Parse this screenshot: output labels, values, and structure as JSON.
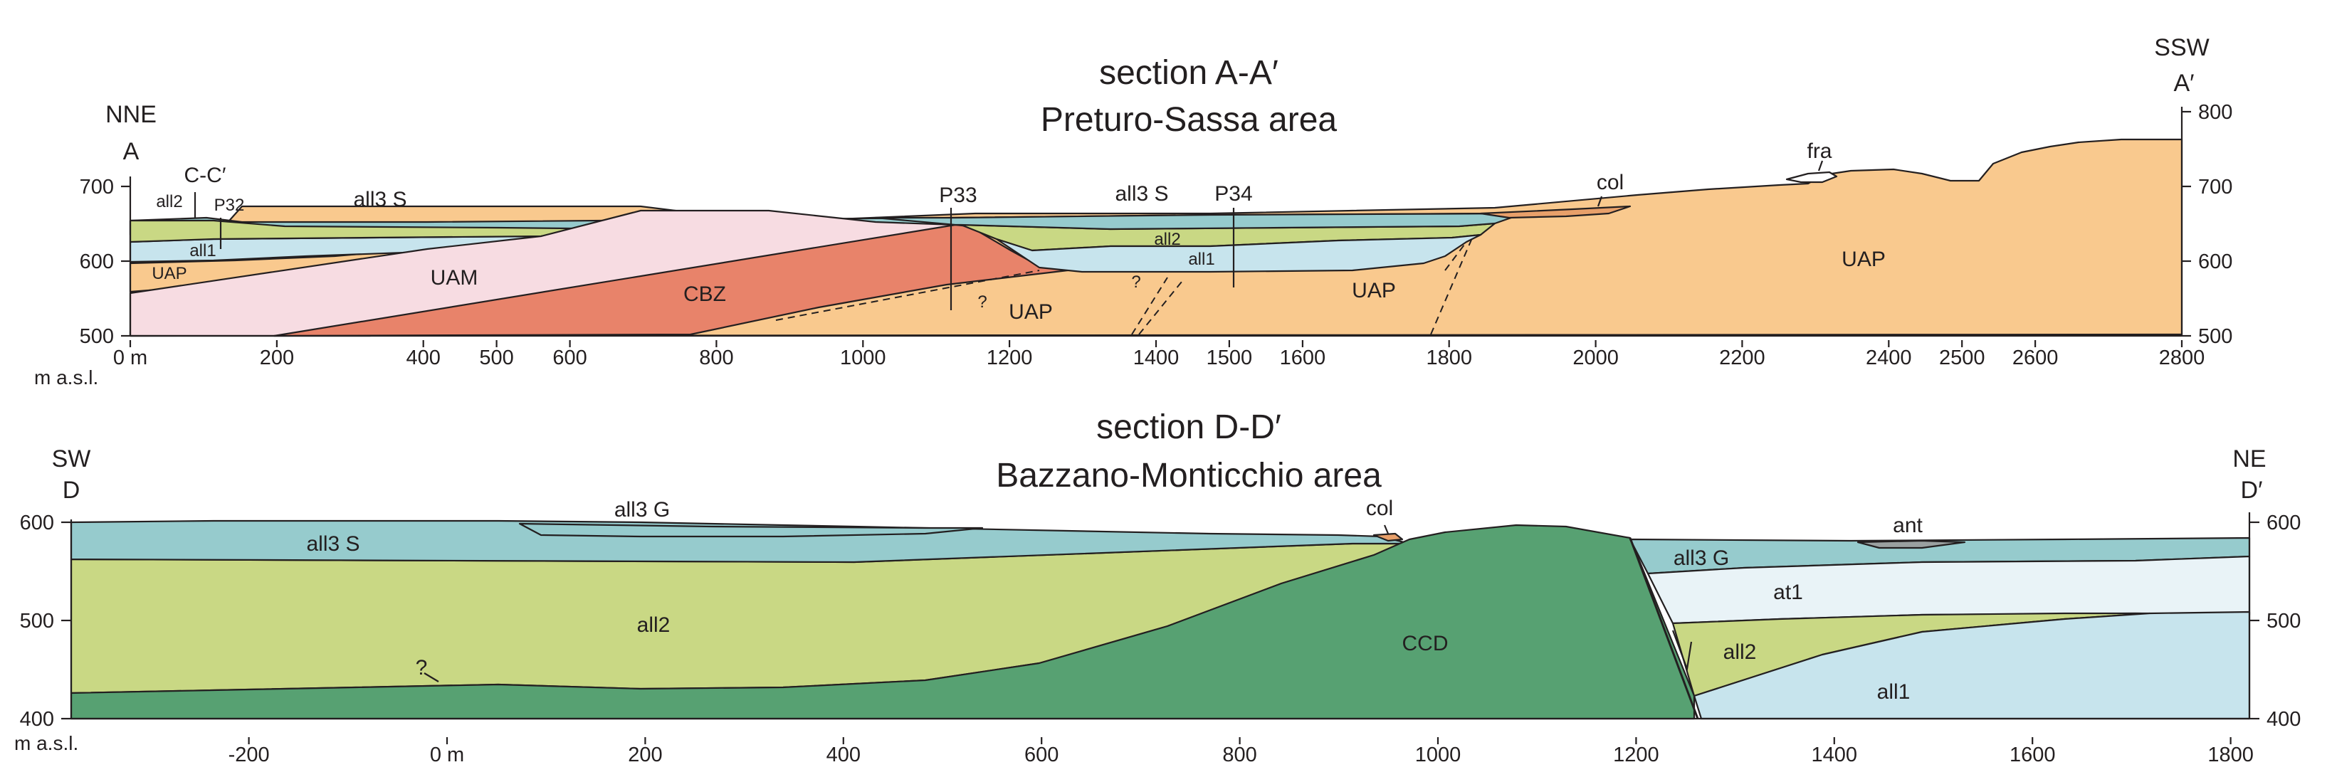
{
  "colors": {
    "UAP": "#f9c98e",
    "UAM": "#f7dce2",
    "CBZ": "#e8836a",
    "all1": "#c7e4ed",
    "all2": "#c9d884",
    "all3": "#96cbcd",
    "CCD": "#57a172",
    "at1": "#e9f3f7",
    "ant": "#9aa0a0",
    "outline": "#231f20"
  },
  "sectionA": {
    "title": "section A-A′",
    "subtitle": "Preturo-Sassa area",
    "left_dir": "NNE",
    "left_point": "A",
    "right_dir": "SSW",
    "right_point": "A′",
    "cross_ref": "C-C′",
    "elev_unit": "m a.s.l.",
    "left_ticks": [
      "700",
      "600",
      "500"
    ],
    "right_ticks": [
      "800",
      "700",
      "600",
      "500"
    ],
    "x_ticks": [
      "0 m",
      "200",
      "400",
      "500",
      "600",
      "800",
      "1000",
      "1200",
      "1400",
      "1500",
      "1600",
      "1800",
      "2000",
      "2200",
      "2400",
      "2500",
      "2600",
      "2800"
    ],
    "units": {
      "UAP": "UAP",
      "UAM": "UAM",
      "CBZ": "CBZ",
      "all1": "all1",
      "all2": "all2",
      "all3S": "all3 S",
      "col": "col",
      "fra": "fra"
    },
    "wells": [
      "P32",
      "P33",
      "P34"
    ],
    "query": "?"
  },
  "sectionD": {
    "title": "section D-D′",
    "subtitle": "Bazzano-Monticchio area",
    "left_dir": "SW",
    "left_point": "D",
    "right_dir": "NE",
    "right_point": "D′",
    "elev_unit": "m a.s.l.",
    "left_ticks": [
      "600",
      "500",
      "400"
    ],
    "right_ticks": [
      "600",
      "500",
      "400"
    ],
    "x_ticks": [
      "-200",
      "0 m",
      "200",
      "400",
      "600",
      "800",
      "1000",
      "1200",
      "1400",
      "1600",
      "1800"
    ],
    "units": {
      "all3G": "all3 G",
      "all3S": "all3 S",
      "all2": "all2",
      "all1": "all1",
      "CCD": "CCD",
      "col": "col",
      "ant": "ant",
      "at1": "at1"
    },
    "query": "?"
  }
}
